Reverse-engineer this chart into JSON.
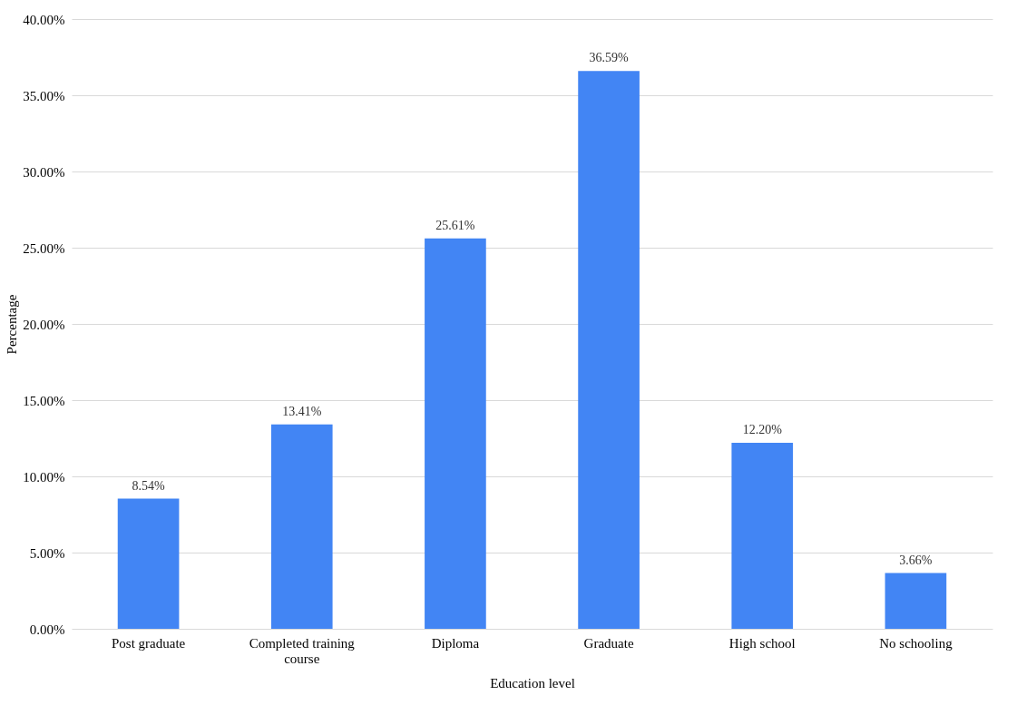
{
  "chart_data": {
    "type": "bar",
    "xlabel": "Education level",
    "ylabel": "Percentage",
    "categories": [
      "Post graduate",
      "Completed training course",
      "Diploma",
      "Graduate",
      "High school",
      "No schooling"
    ],
    "values": [
      8.54,
      13.41,
      25.61,
      36.59,
      12.2,
      3.66
    ],
    "value_labels": [
      "8.54%",
      "13.41%",
      "25.61%",
      "36.59%",
      "12.20%",
      "3.66%"
    ],
    "color": "#4285f4",
    "ylim": [
      0,
      40
    ],
    "yticks": [
      {
        "value": 0,
        "label": "0.00%"
      },
      {
        "value": 5,
        "label": "5.00%"
      },
      {
        "value": 10,
        "label": "10.00%"
      },
      {
        "value": 15,
        "label": "15.00%"
      },
      {
        "value": 20,
        "label": "20.00%"
      },
      {
        "value": 25,
        "label": "25.00%"
      },
      {
        "value": 30,
        "label": "30.00%"
      },
      {
        "value": 35,
        "label": "35.00%"
      },
      {
        "value": 40,
        "label": "40.00%"
      }
    ],
    "grid": "y"
  }
}
